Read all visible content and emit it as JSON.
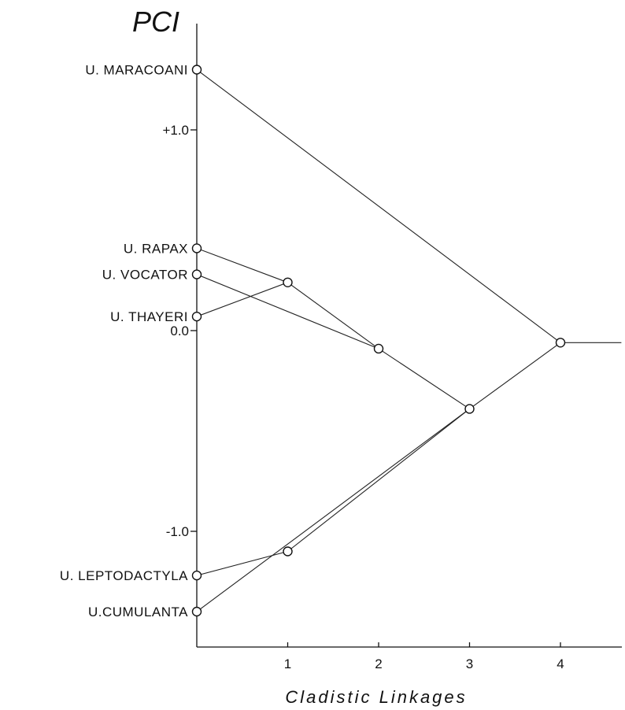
{
  "chart_data": {
    "type": "line",
    "ylabel": "PCI",
    "xlabel": "Cladistic Linkages",
    "xlim": [
      0,
      4.7
    ],
    "ylim": [
      -1.6,
      1.5
    ],
    "x_ticks": [
      {
        "value": 1,
        "label": "1"
      },
      {
        "value": 2,
        "label": "2"
      },
      {
        "value": 3,
        "label": "3"
      },
      {
        "value": 4,
        "label": "4"
      }
    ],
    "y_ticks": [
      {
        "value": 1.0,
        "label": "+1.0"
      },
      {
        "value": 0.0,
        "label": "0.0"
      },
      {
        "value": -1.0,
        "label": "-1.0"
      }
    ],
    "nodes": [
      {
        "id": "maracoani",
        "label": "U. MARACOANI",
        "x": 0,
        "y": 1.3
      },
      {
        "id": "rapax",
        "label": "U. RAPAX",
        "x": 0,
        "y": 0.41
      },
      {
        "id": "vocator",
        "label": "U. VOCATOR",
        "x": 0,
        "y": 0.28
      },
      {
        "id": "thayeri",
        "label": "U. THAYERI",
        "x": 0,
        "y": 0.07
      },
      {
        "id": "leptodactyla",
        "label": "U. LEPTODACTYLA",
        "x": 0,
        "y": -1.22
      },
      {
        "id": "cumulanta",
        "label": "U.CUMULANTA",
        "x": 0,
        "y": -1.4
      },
      {
        "id": "j1a",
        "label": "",
        "x": 1,
        "y": 0.24
      },
      {
        "id": "j2",
        "label": "",
        "x": 2,
        "y": -0.09
      },
      {
        "id": "j1b",
        "label": "",
        "x": 1,
        "y": -1.1
      },
      {
        "id": "j3",
        "label": "",
        "x": 3,
        "y": -0.39
      },
      {
        "id": "j4",
        "label": "",
        "x": 4,
        "y": -0.06
      }
    ],
    "edges": [
      [
        "rapax",
        "j1a"
      ],
      [
        "thayeri",
        "j1a"
      ],
      [
        "j1a",
        "j2"
      ],
      [
        "vocator",
        "j2"
      ],
      [
        "j2",
        "j3"
      ],
      [
        "leptodactyla",
        "j1b"
      ],
      [
        "cumulanta",
        "j3"
      ],
      [
        "j1b",
        "j3"
      ],
      [
        "j3",
        "j4"
      ],
      [
        "maracoani",
        "j4"
      ]
    ],
    "root_extension": {
      "from": "j4",
      "to_x": 4.67,
      "y": -0.06
    },
    "grid": false,
    "legend": "none"
  }
}
